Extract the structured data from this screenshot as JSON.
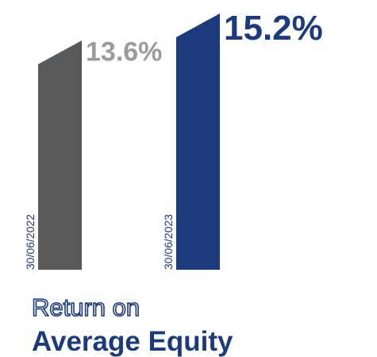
{
  "chart_data": {
    "type": "bar",
    "title": [
      "Return on",
      "Average Equity"
    ],
    "categories": [
      "30/06/2022",
      "30/06/2023"
    ],
    "values": [
      13.6,
      15.2
    ],
    "value_labels": [
      "13.6%",
      "15.2%"
    ],
    "colors": [
      "#58595b",
      "#1c3a7e"
    ],
    "value_label_colors": [
      "#9b9b9b",
      "#1c3a7e"
    ],
    "category_label_color": "#1c3a7e",
    "title_color": "#1c3a7e"
  }
}
